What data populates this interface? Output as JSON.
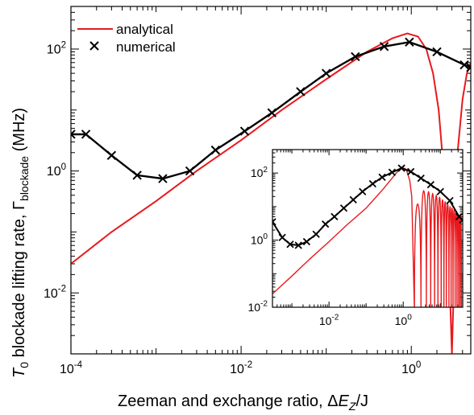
{
  "chart_data": {
    "type": "line",
    "xlabel": "Zeeman and exchange ratio, ΔE₂/J",
    "xlabel_parts": {
      "main": "Zeeman and exchange ratio, Δ",
      "var": "E",
      "sub": "Z",
      "tail": "/J"
    },
    "ylabel_parts": {
      "var": "T",
      "sub0": "0",
      "mid": " blockade lifting rate, Γ",
      "sub": "blockade",
      "tail": " (MHz)"
    },
    "xscale": "log",
    "yscale": "log",
    "xlim": [
      0.0001,
      5
    ],
    "ylim": [
      0.001,
      500
    ],
    "xticks": [
      {
        "value": 0.0001,
        "base": "10",
        "exp": "-4"
      },
      {
        "value": 0.01,
        "base": "10",
        "exp": "-2"
      },
      {
        "value": 1,
        "base": "10",
        "exp": "0"
      }
    ],
    "yticks": [
      {
        "value": 0.01,
        "base": "10",
        "exp": "-2"
      },
      {
        "value": 1,
        "base": "10",
        "exp": "0"
      },
      {
        "value": 100,
        "base": "10",
        "exp": "2"
      }
    ],
    "legend": {
      "position": "top-left",
      "entries": [
        "analytical",
        "numerical"
      ]
    },
    "colors": {
      "analytical": "#e8191d",
      "numerical": "#000000"
    },
    "series": [
      {
        "name": "analytical",
        "style": "line",
        "x": [
          0.0001,
          0.0003,
          0.001,
          0.003,
          0.01,
          0.03,
          0.1,
          0.3,
          0.6,
          0.9,
          1.2,
          1.5,
          1.8,
          2.1,
          2.4,
          2.7,
          3.0,
          3.5,
          4.0,
          4.5,
          5.0
        ],
        "y": [
          0.03,
          0.1,
          0.32,
          1.0,
          3.2,
          10,
          32,
          90,
          150,
          180,
          160,
          100,
          40,
          10,
          1,
          0.1,
          0.001,
          2,
          15,
          40,
          60
        ]
      },
      {
        "name": "numerical",
        "style": "line+x",
        "x": [
          0.0001,
          0.00015,
          0.0003,
          0.0006,
          0.0012,
          0.0025,
          0.005,
          0.011,
          0.023,
          0.05,
          0.1,
          0.22,
          0.48,
          0.95,
          2.0,
          4.2,
          5.0
        ],
        "y": [
          4.0,
          4.0,
          1.8,
          0.85,
          0.75,
          1.0,
          2.2,
          4.5,
          9.0,
          20,
          40,
          75,
          110,
          130,
          90,
          55,
          50
        ]
      }
    ],
    "inset": {
      "xscale": "log",
      "yscale": "log",
      "xlim": [
        0.0003,
        40
      ],
      "ylim": [
        0.01,
        500
      ],
      "xticks": [
        {
          "value": 0.01,
          "base": "10",
          "exp": "-2"
        },
        {
          "value": 1,
          "base": "10",
          "exp": "0"
        }
      ],
      "yticks": [
        {
          "value": 0.01,
          "base": "10",
          "exp": "-2"
        },
        {
          "value": 1,
          "base": "10",
          "exp": "0"
        },
        {
          "value": 100,
          "base": "10",
          "exp": "2"
        }
      ],
      "series": [
        {
          "name": "analytical",
          "style": "oscillating",
          "x_smooth": [
            0.0003,
            0.001,
            0.003,
            0.01,
            0.03,
            0.1,
            0.3,
            0.6,
            0.9,
            1.2,
            1.5,
            1.7
          ],
          "y_smooth": [
            0.025,
            0.085,
            0.27,
            0.9,
            2.8,
            9,
            35,
            90,
            150,
            130,
            60,
            20
          ],
          "dips_x": [
            2.0,
            3.0,
            4.2,
            5.5,
            7.0,
            8.6,
            10.5,
            12.5,
            14.5,
            17,
            19.5,
            22,
            25,
            28,
            31,
            34,
            37
          ],
          "envelope_at_dips": [
            12,
            30,
            28,
            25,
            22,
            19,
            16,
            14,
            12,
            10,
            9,
            8,
            7,
            6,
            5.5,
            5,
            4.5
          ]
        },
        {
          "name": "numerical",
          "style": "line+x",
          "x": [
            0.0003,
            0.00055,
            0.0009,
            0.0015,
            0.0025,
            0.0045,
            0.008,
            0.014,
            0.025,
            0.045,
            0.08,
            0.15,
            0.27,
            0.5,
            0.9,
            1.6,
            3.0,
            5.5,
            10,
            18,
            32,
            40
          ],
          "y": [
            3.5,
            1.2,
            0.75,
            0.7,
            0.9,
            1.5,
            3.0,
            5.0,
            9.0,
            16,
            28,
            48,
            75,
            105,
            140,
            110,
            70,
            45,
            28,
            15,
            5,
            4
          ]
        }
      ]
    }
  }
}
